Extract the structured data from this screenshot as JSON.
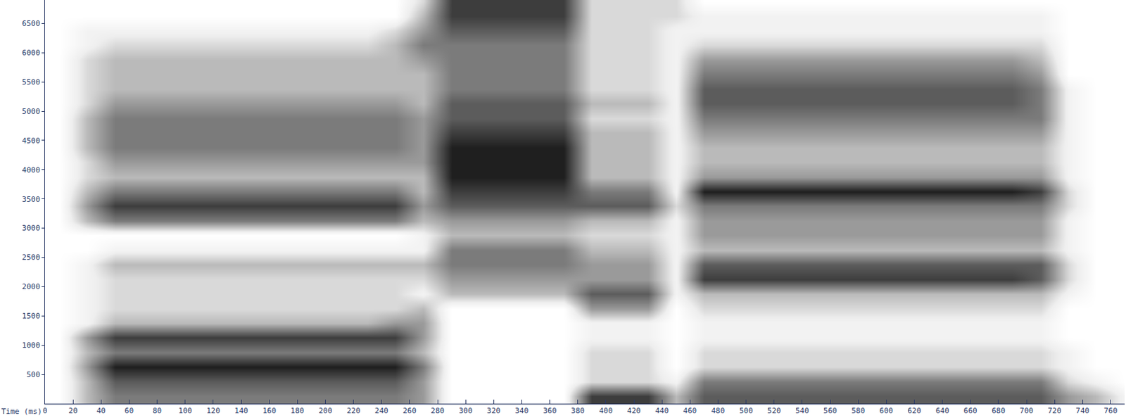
{
  "chart_data": {
    "type": "heatmap",
    "x_label": "Time (ms)",
    "x": [
      10,
      30,
      50,
      70,
      90,
      110,
      130,
      150,
      170,
      190,
      210,
      230,
      250,
      270,
      290,
      310,
      330,
      350,
      370,
      390,
      410,
      430,
      450,
      470,
      490,
      510,
      530,
      550,
      570,
      590,
      610,
      630,
      650,
      670,
      690,
      710,
      730,
      750,
      770
    ],
    "y": [
      125,
      375,
      625,
      875,
      1125,
      1375,
      1625,
      1875,
      2125,
      2375,
      2625,
      2875,
      3125,
      3375,
      3625,
      3875,
      4125,
      4375,
      4625,
      4875,
      5125,
      5375,
      5625,
      5875,
      6125,
      6375,
      6625,
      6875
    ],
    "cells_by_time": [
      [
        0,
        0,
        0,
        0,
        0,
        0,
        0,
        0,
        0,
        0,
        0,
        0,
        0,
        0,
        0,
        0,
        0,
        0,
        0,
        0,
        0,
        0,
        0,
        0,
        0,
        0,
        0,
        0
      ],
      [
        3,
        3,
        4,
        3,
        4,
        1,
        1,
        1,
        1,
        1,
        0,
        0,
        3,
        4,
        3,
        2,
        2,
        3,
        3,
        3,
        2,
        2,
        2,
        2,
        1,
        1,
        0,
        0
      ],
      [
        5,
        6,
        8,
        5,
        7,
        3,
        2,
        2,
        2,
        3,
        1,
        0,
        5,
        7,
        5,
        3,
        4,
        5,
        5,
        5,
        4,
        3,
        3,
        3,
        2,
        1,
        0,
        0
      ],
      [
        5,
        6,
        8,
        5,
        7,
        3,
        2,
        2,
        2,
        3,
        1,
        0,
        5,
        7,
        5,
        3,
        4,
        5,
        5,
        5,
        4,
        3,
        3,
        3,
        2,
        1,
        0,
        0
      ],
      [
        5,
        6,
        8,
        5,
        7,
        3,
        2,
        2,
        2,
        3,
        1,
        0,
        5,
        7,
        5,
        3,
        4,
        5,
        5,
        5,
        4,
        3,
        3,
        3,
        2,
        1,
        0,
        0
      ],
      [
        5,
        6,
        8,
        5,
        7,
        3,
        2,
        2,
        2,
        3,
        1,
        0,
        5,
        7,
        5,
        3,
        4,
        5,
        5,
        5,
        4,
        3,
        3,
        3,
        2,
        1,
        0,
        0
      ],
      [
        5,
        6,
        8,
        5,
        7,
        3,
        2,
        2,
        2,
        3,
        1,
        0,
        5,
        7,
        5,
        3,
        4,
        5,
        5,
        5,
        4,
        3,
        3,
        3,
        2,
        1,
        0,
        0
      ],
      [
        5,
        6,
        8,
        5,
        7,
        3,
        2,
        2,
        2,
        3,
        1,
        0,
        5,
        7,
        5,
        3,
        4,
        5,
        5,
        5,
        4,
        3,
        3,
        3,
        2,
        1,
        0,
        0
      ],
      [
        5,
        6,
        8,
        5,
        7,
        3,
        2,
        2,
        2,
        3,
        1,
        0,
        5,
        7,
        5,
        3,
        4,
        5,
        5,
        5,
        4,
        3,
        3,
        3,
        2,
        1,
        0,
        0
      ],
      [
        5,
        6,
        8,
        5,
        7,
        3,
        2,
        2,
        2,
        3,
        1,
        0,
        5,
        7,
        5,
        3,
        4,
        5,
        5,
        5,
        4,
        3,
        3,
        3,
        2,
        1,
        0,
        0
      ],
      [
        5,
        6,
        8,
        5,
        7,
        3,
        2,
        2,
        2,
        3,
        1,
        0,
        5,
        7,
        5,
        3,
        4,
        5,
        5,
        5,
        4,
        3,
        3,
        3,
        2,
        1,
        0,
        0
      ],
      [
        5,
        6,
        8,
        5,
        7,
        3,
        2,
        2,
        2,
        3,
        1,
        0,
        5,
        7,
        5,
        3,
        4,
        5,
        5,
        5,
        4,
        3,
        3,
        3,
        2,
        1,
        0,
        0
      ],
      [
        5,
        6,
        8,
        5,
        7,
        4,
        2,
        2,
        2,
        3,
        1,
        0,
        5,
        7,
        5,
        3,
        4,
        5,
        5,
        5,
        4,
        3,
        3,
        3,
        3,
        2,
        0,
        0
      ],
      [
        4,
        4,
        5,
        3,
        4,
        4,
        3,
        1,
        2,
        3,
        1,
        1,
        3,
        4,
        3,
        3,
        4,
        4,
        4,
        4,
        3,
        3,
        3,
        4,
        5,
        4,
        3,
        2
      ],
      [
        0,
        0,
        0,
        0,
        0,
        0,
        0,
        3,
        4,
        5,
        5,
        3,
        4,
        6,
        7,
        8,
        8,
        8,
        7,
        6,
        6,
        5,
        5,
        5,
        5,
        6,
        7,
        7
      ],
      [
        0,
        0,
        0,
        0,
        0,
        0,
        0,
        3,
        4,
        5,
        5,
        3,
        4,
        6,
        7,
        8,
        8,
        8,
        7,
        6,
        6,
        5,
        5,
        5,
        5,
        6,
        7,
        7
      ],
      [
        0,
        0,
        0,
        0,
        0,
        0,
        0,
        3,
        4,
        5,
        5,
        3,
        4,
        6,
        7,
        8,
        8,
        8,
        7,
        6,
        6,
        5,
        5,
        5,
        5,
        6,
        7,
        7
      ],
      [
        0,
        0,
        0,
        0,
        0,
        0,
        0,
        3,
        4,
        5,
        5,
        3,
        4,
        6,
        7,
        8,
        8,
        8,
        7,
        6,
        6,
        5,
        5,
        5,
        5,
        6,
        7,
        7
      ],
      [
        0,
        0,
        0,
        0,
        0,
        0,
        0,
        3,
        4,
        5,
        5,
        3,
        4,
        6,
        7,
        8,
        8,
        8,
        7,
        6,
        6,
        5,
        5,
        5,
        5,
        6,
        7,
        7
      ],
      [
        7,
        2,
        2,
        2,
        1,
        1,
        4,
        6,
        4,
        4,
        3,
        2,
        3,
        6,
        5,
        3,
        3,
        3,
        3,
        2,
        3,
        2,
        2,
        2,
        2,
        2,
        2,
        2
      ],
      [
        7,
        2,
        2,
        2,
        1,
        1,
        4,
        6,
        4,
        4,
        3,
        2,
        3,
        6,
        5,
        3,
        3,
        3,
        3,
        2,
        3,
        2,
        2,
        2,
        2,
        2,
        2,
        2
      ],
      [
        7,
        2,
        2,
        2,
        1,
        1,
        4,
        6,
        4,
        4,
        3,
        2,
        3,
        6,
        5,
        3,
        3,
        3,
        3,
        2,
        3,
        2,
        2,
        2,
        2,
        2,
        2,
        2
      ],
      [
        3,
        1,
        0,
        0,
        0,
        0,
        0,
        1,
        1,
        1,
        1,
        1,
        1,
        2,
        1,
        1,
        1,
        1,
        1,
        1,
        1,
        1,
        1,
        1,
        1,
        1,
        2,
        2
      ],
      [
        6,
        5,
        2,
        2,
        1,
        1,
        2,
        3,
        7,
        6,
        3,
        4,
        4,
        5,
        8,
        4,
        3,
        3,
        4,
        5,
        6,
        6,
        5,
        4,
        2,
        1,
        1,
        0
      ],
      [
        6,
        5,
        2,
        2,
        1,
        1,
        2,
        3,
        7,
        6,
        3,
        4,
        4,
        5,
        8,
        4,
        3,
        3,
        4,
        5,
        6,
        6,
        5,
        4,
        2,
        1,
        1,
        0
      ],
      [
        6,
        5,
        2,
        2,
        1,
        1,
        2,
        3,
        7,
        6,
        3,
        4,
        4,
        5,
        8,
        4,
        3,
        3,
        4,
        5,
        6,
        6,
        5,
        4,
        2,
        1,
        1,
        0
      ],
      [
        6,
        5,
        2,
        2,
        1,
        1,
        2,
        3,
        7,
        6,
        3,
        4,
        4,
        5,
        8,
        4,
        3,
        3,
        4,
        5,
        6,
        6,
        5,
        4,
        2,
        1,
        1,
        0
      ],
      [
        6,
        5,
        2,
        2,
        1,
        1,
        2,
        3,
        7,
        6,
        3,
        4,
        4,
        5,
        8,
        4,
        3,
        3,
        4,
        5,
        6,
        6,
        5,
        4,
        2,
        1,
        1,
        0
      ],
      [
        6,
        5,
        2,
        2,
        1,
        1,
        2,
        3,
        7,
        6,
        3,
        4,
        4,
        5,
        8,
        4,
        3,
        3,
        4,
        5,
        6,
        6,
        5,
        4,
        2,
        1,
        1,
        0
      ],
      [
        6,
        5,
        2,
        2,
        1,
        1,
        2,
        3,
        7,
        6,
        3,
        4,
        4,
        5,
        8,
        4,
        3,
        3,
        4,
        5,
        6,
        6,
        5,
        4,
        2,
        1,
        1,
        0
      ],
      [
        6,
        5,
        2,
        2,
        1,
        1,
        2,
        3,
        7,
        6,
        3,
        4,
        4,
        5,
        8,
        4,
        3,
        3,
        4,
        5,
        6,
        6,
        5,
        4,
        2,
        1,
        1,
        0
      ],
      [
        6,
        5,
        2,
        2,
        1,
        1,
        2,
        3,
        7,
        6,
        3,
        4,
        4,
        5,
        8,
        4,
        3,
        3,
        4,
        5,
        6,
        6,
        5,
        4,
        2,
        1,
        1,
        0
      ],
      [
        6,
        5,
        2,
        2,
        1,
        1,
        2,
        3,
        7,
        6,
        3,
        4,
        4,
        5,
        8,
        4,
        3,
        3,
        4,
        5,
        6,
        6,
        5,
        4,
        2,
        1,
        1,
        0
      ],
      [
        6,
        5,
        2,
        2,
        1,
        1,
        2,
        3,
        7,
        6,
        3,
        4,
        4,
        5,
        8,
        4,
        3,
        3,
        4,
        5,
        6,
        6,
        5,
        4,
        2,
        1,
        1,
        0
      ],
      [
        6,
        5,
        2,
        2,
        1,
        1,
        2,
        3,
        7,
        6,
        3,
        4,
        4,
        5,
        8,
        4,
        3,
        3,
        4,
        5,
        6,
        6,
        5,
        4,
        2,
        1,
        1,
        0
      ],
      [
        6,
        5,
        2,
        2,
        1,
        1,
        2,
        3,
        6,
        6,
        3,
        4,
        4,
        5,
        7,
        4,
        3,
        3,
        4,
        5,
        5,
        5,
        4,
        3,
        2,
        1,
        1,
        0
      ],
      [
        4,
        2,
        1,
        1,
        0,
        0,
        0,
        1,
        2,
        2,
        1,
        1,
        1,
        2,
        2,
        1,
        1,
        1,
        1,
        1,
        1,
        1,
        0,
        0,
        0,
        0,
        0,
        0
      ],
      [
        3,
        1,
        0,
        0,
        0,
        0,
        0,
        0,
        0,
        0,
        0,
        0,
        0,
        0,
        0,
        0,
        0,
        0,
        0,
        0,
        0,
        0,
        0,
        0,
        0,
        0,
        0,
        0
      ],
      [
        1,
        0,
        0,
        0,
        0,
        0,
        0,
        0,
        0,
        0,
        0,
        0,
        0,
        0,
        0,
        0,
        0,
        0,
        0,
        0,
        0,
        0,
        0,
        0,
        0,
        0,
        0,
        0
      ]
    ],
    "zlim": [
      0,
      9
    ],
    "xlim": [
      0,
      770
    ],
    "xticks": [
      0,
      20,
      40,
      60,
      80,
      100,
      120,
      140,
      160,
      180,
      200,
      220,
      240,
      260,
      280,
      300,
      320,
      340,
      360,
      380,
      400,
      420,
      440,
      460,
      480,
      500,
      520,
      540,
      560,
      580,
      600,
      620,
      640,
      660,
      680,
      700,
      720,
      740,
      760
    ],
    "ylim": [
      0,
      6900
    ],
    "yticks": [
      500,
      1000,
      1500,
      2000,
      2500,
      3000,
      3500,
      4000,
      4500,
      5000,
      5500,
      6000,
      6500
    ],
    "grid": false
  }
}
